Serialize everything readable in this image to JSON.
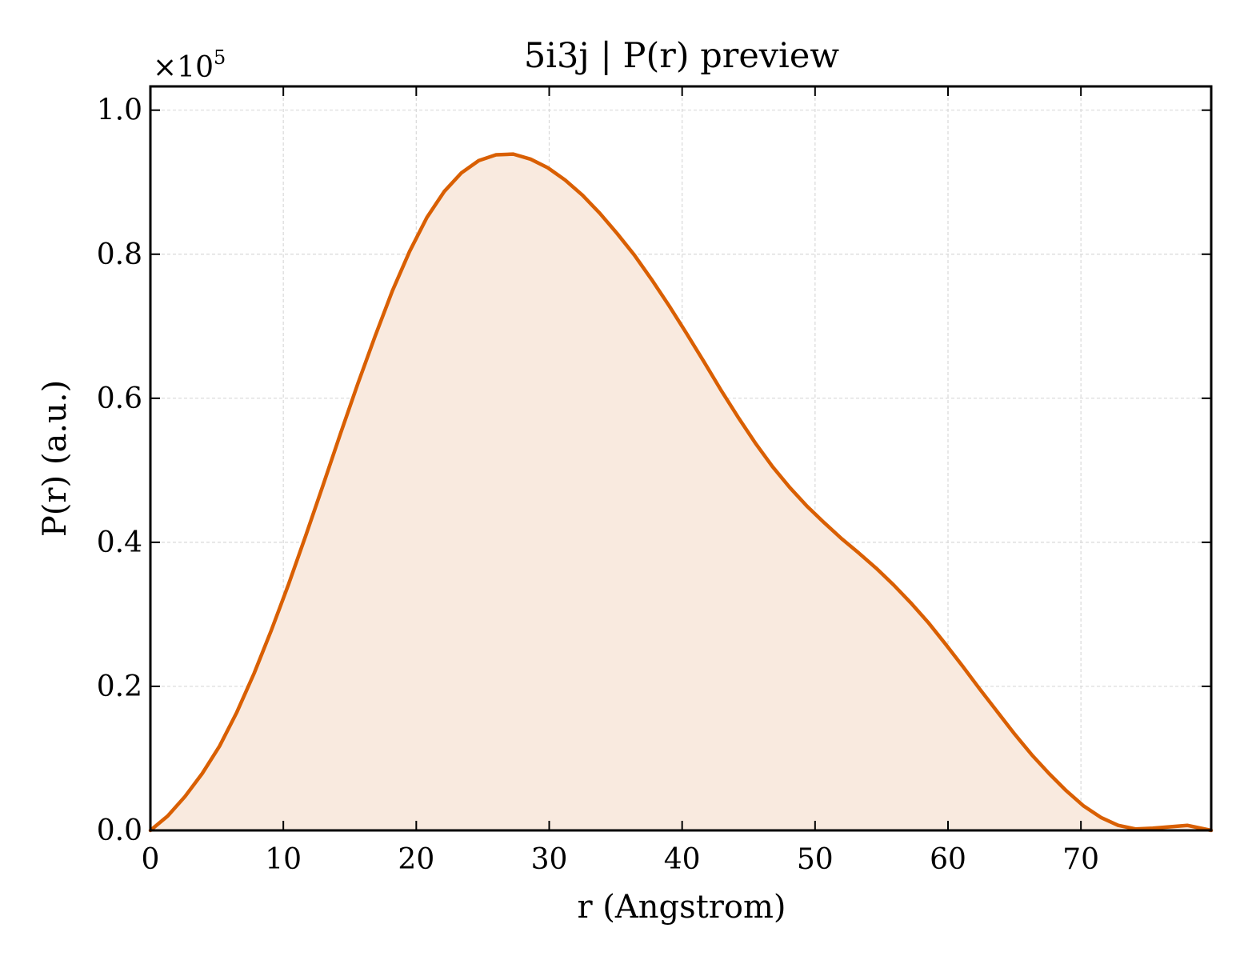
{
  "chart_data": {
    "type": "area",
    "title": "5i3j | P(r) preview",
    "xlabel": "r (Angstrom)",
    "ylabel": "P(r) (a.u.)",
    "y_scale_label": "×10",
    "y_scale_exponent": "5",
    "xlim": [
      0,
      79.8
    ],
    "ylim": [
      0,
      1.033
    ],
    "x_ticks": [
      0,
      10,
      20,
      30,
      40,
      50,
      60,
      70
    ],
    "x_tick_labels": [
      "0",
      "10",
      "20",
      "30",
      "40",
      "50",
      "60",
      "70"
    ],
    "y_ticks": [
      0.0,
      0.2,
      0.4,
      0.6,
      0.8,
      1.0
    ],
    "y_tick_labels": [
      "0.0",
      "0.2",
      "0.4",
      "0.6",
      "0.8",
      "1.0"
    ],
    "grid": true,
    "line_color": "#d95f02",
    "fill_color": "#f9eadf",
    "series": [
      {
        "x": [
          0,
          1.3,
          2.6,
          3.9,
          5.2,
          6.5,
          7.8,
          9.1,
          10.4,
          11.7,
          13.0,
          14.3,
          15.6,
          16.9,
          18.2,
          19.5,
          20.8,
          22.1,
          23.4,
          24.7,
          26.0,
          27.3,
          28.6,
          29.9,
          31.2,
          32.5,
          33.8,
          35.1,
          36.4,
          37.7,
          39.0,
          40.3,
          41.6,
          42.9,
          44.2,
          45.5,
          46.8,
          48.1,
          49.4,
          50.7,
          52.0,
          53.3,
          54.6,
          55.9,
          57.2,
          58.5,
          59.8,
          61.1,
          62.4,
          63.7,
          65.0,
          66.3,
          67.6,
          68.9,
          70.2,
          71.5,
          72.8,
          74.1,
          75.4,
          76.7,
          78.0,
          79.8
        ],
        "y": [
          0.0,
          0.02,
          0.047,
          0.079,
          0.117,
          0.164,
          0.218,
          0.278,
          0.342,
          0.41,
          0.48,
          0.551,
          0.62,
          0.686,
          0.749,
          0.804,
          0.851,
          0.887,
          0.913,
          0.93,
          0.938,
          0.939,
          0.932,
          0.92,
          0.903,
          0.882,
          0.857,
          0.829,
          0.799,
          0.765,
          0.729,
          0.691,
          0.652,
          0.612,
          0.574,
          0.538,
          0.505,
          0.476,
          0.45,
          0.427,
          0.405,
          0.385,
          0.364,
          0.341,
          0.316,
          0.289,
          0.259,
          0.228,
          0.196,
          0.165,
          0.134,
          0.105,
          0.079,
          0.055,
          0.034,
          0.018,
          0.007,
          0.002,
          0.003,
          0.005,
          0.007,
          0.0
        ]
      }
    ]
  }
}
